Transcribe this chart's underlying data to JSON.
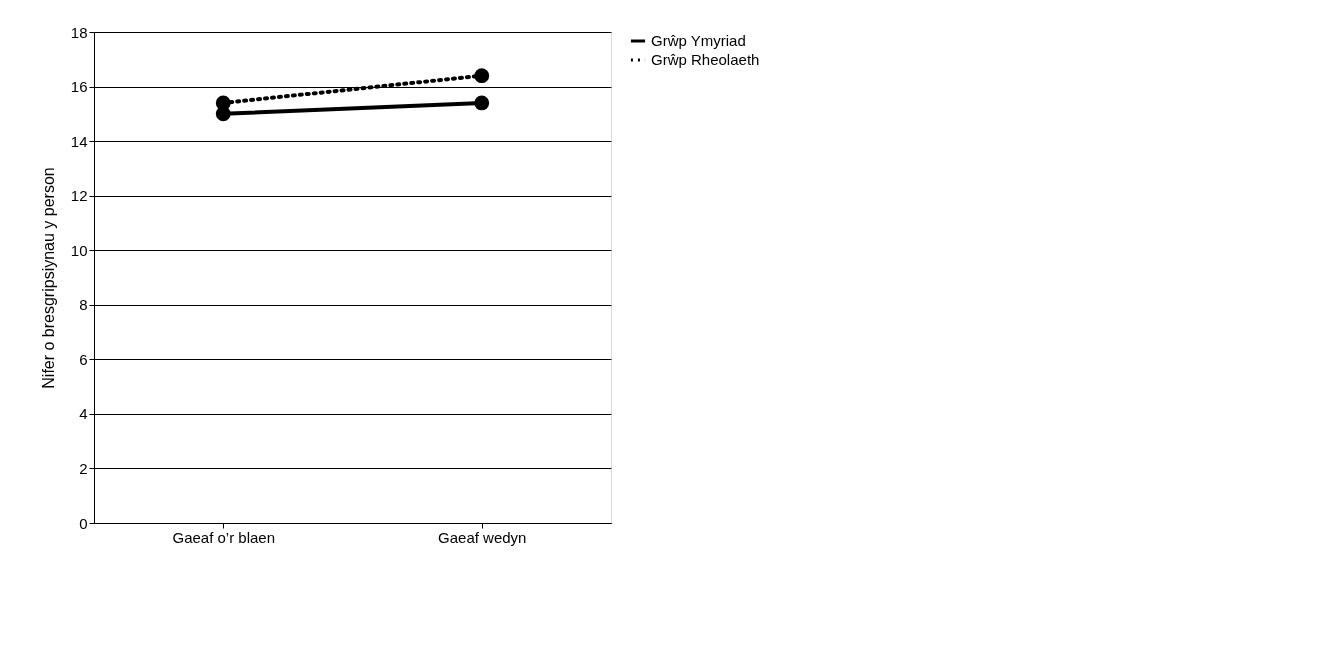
{
  "chart_data": {
    "type": "line",
    "ylabel": "Nifer o bresgripsiynau y person",
    "categories": [
      "Gaeaf o’r blaen",
      "Gaeaf wedyn"
    ],
    "series": [
      {
        "name": "Grŵp Ymyriad",
        "color": "#000000",
        "values": [
          15.0,
          15.4
        ],
        "line_style": "solid"
      },
      {
        "name": "Grŵp Rheolaeth",
        "color": "#000000",
        "values": [
          15.4,
          16.4
        ],
        "line_style": "dotted"
      }
    ],
    "ylim": [
      0,
      18
    ],
    "yticks": [
      0,
      2,
      4,
      6,
      8,
      10,
      12,
      14,
      16,
      18
    ],
    "grid": "y",
    "legend": "right",
    "marker": "circle"
  }
}
